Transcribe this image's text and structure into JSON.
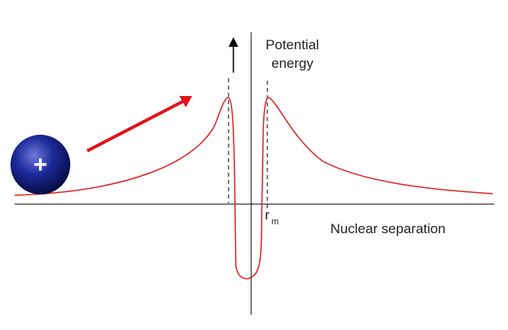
{
  "labels": {
    "y_axis_lines": [
      "Potential",
      "energy"
    ],
    "r_symbol": "r",
    "r_subscript": "m",
    "x_axis": "Nuclear separation",
    "particle": "+"
  }
}
